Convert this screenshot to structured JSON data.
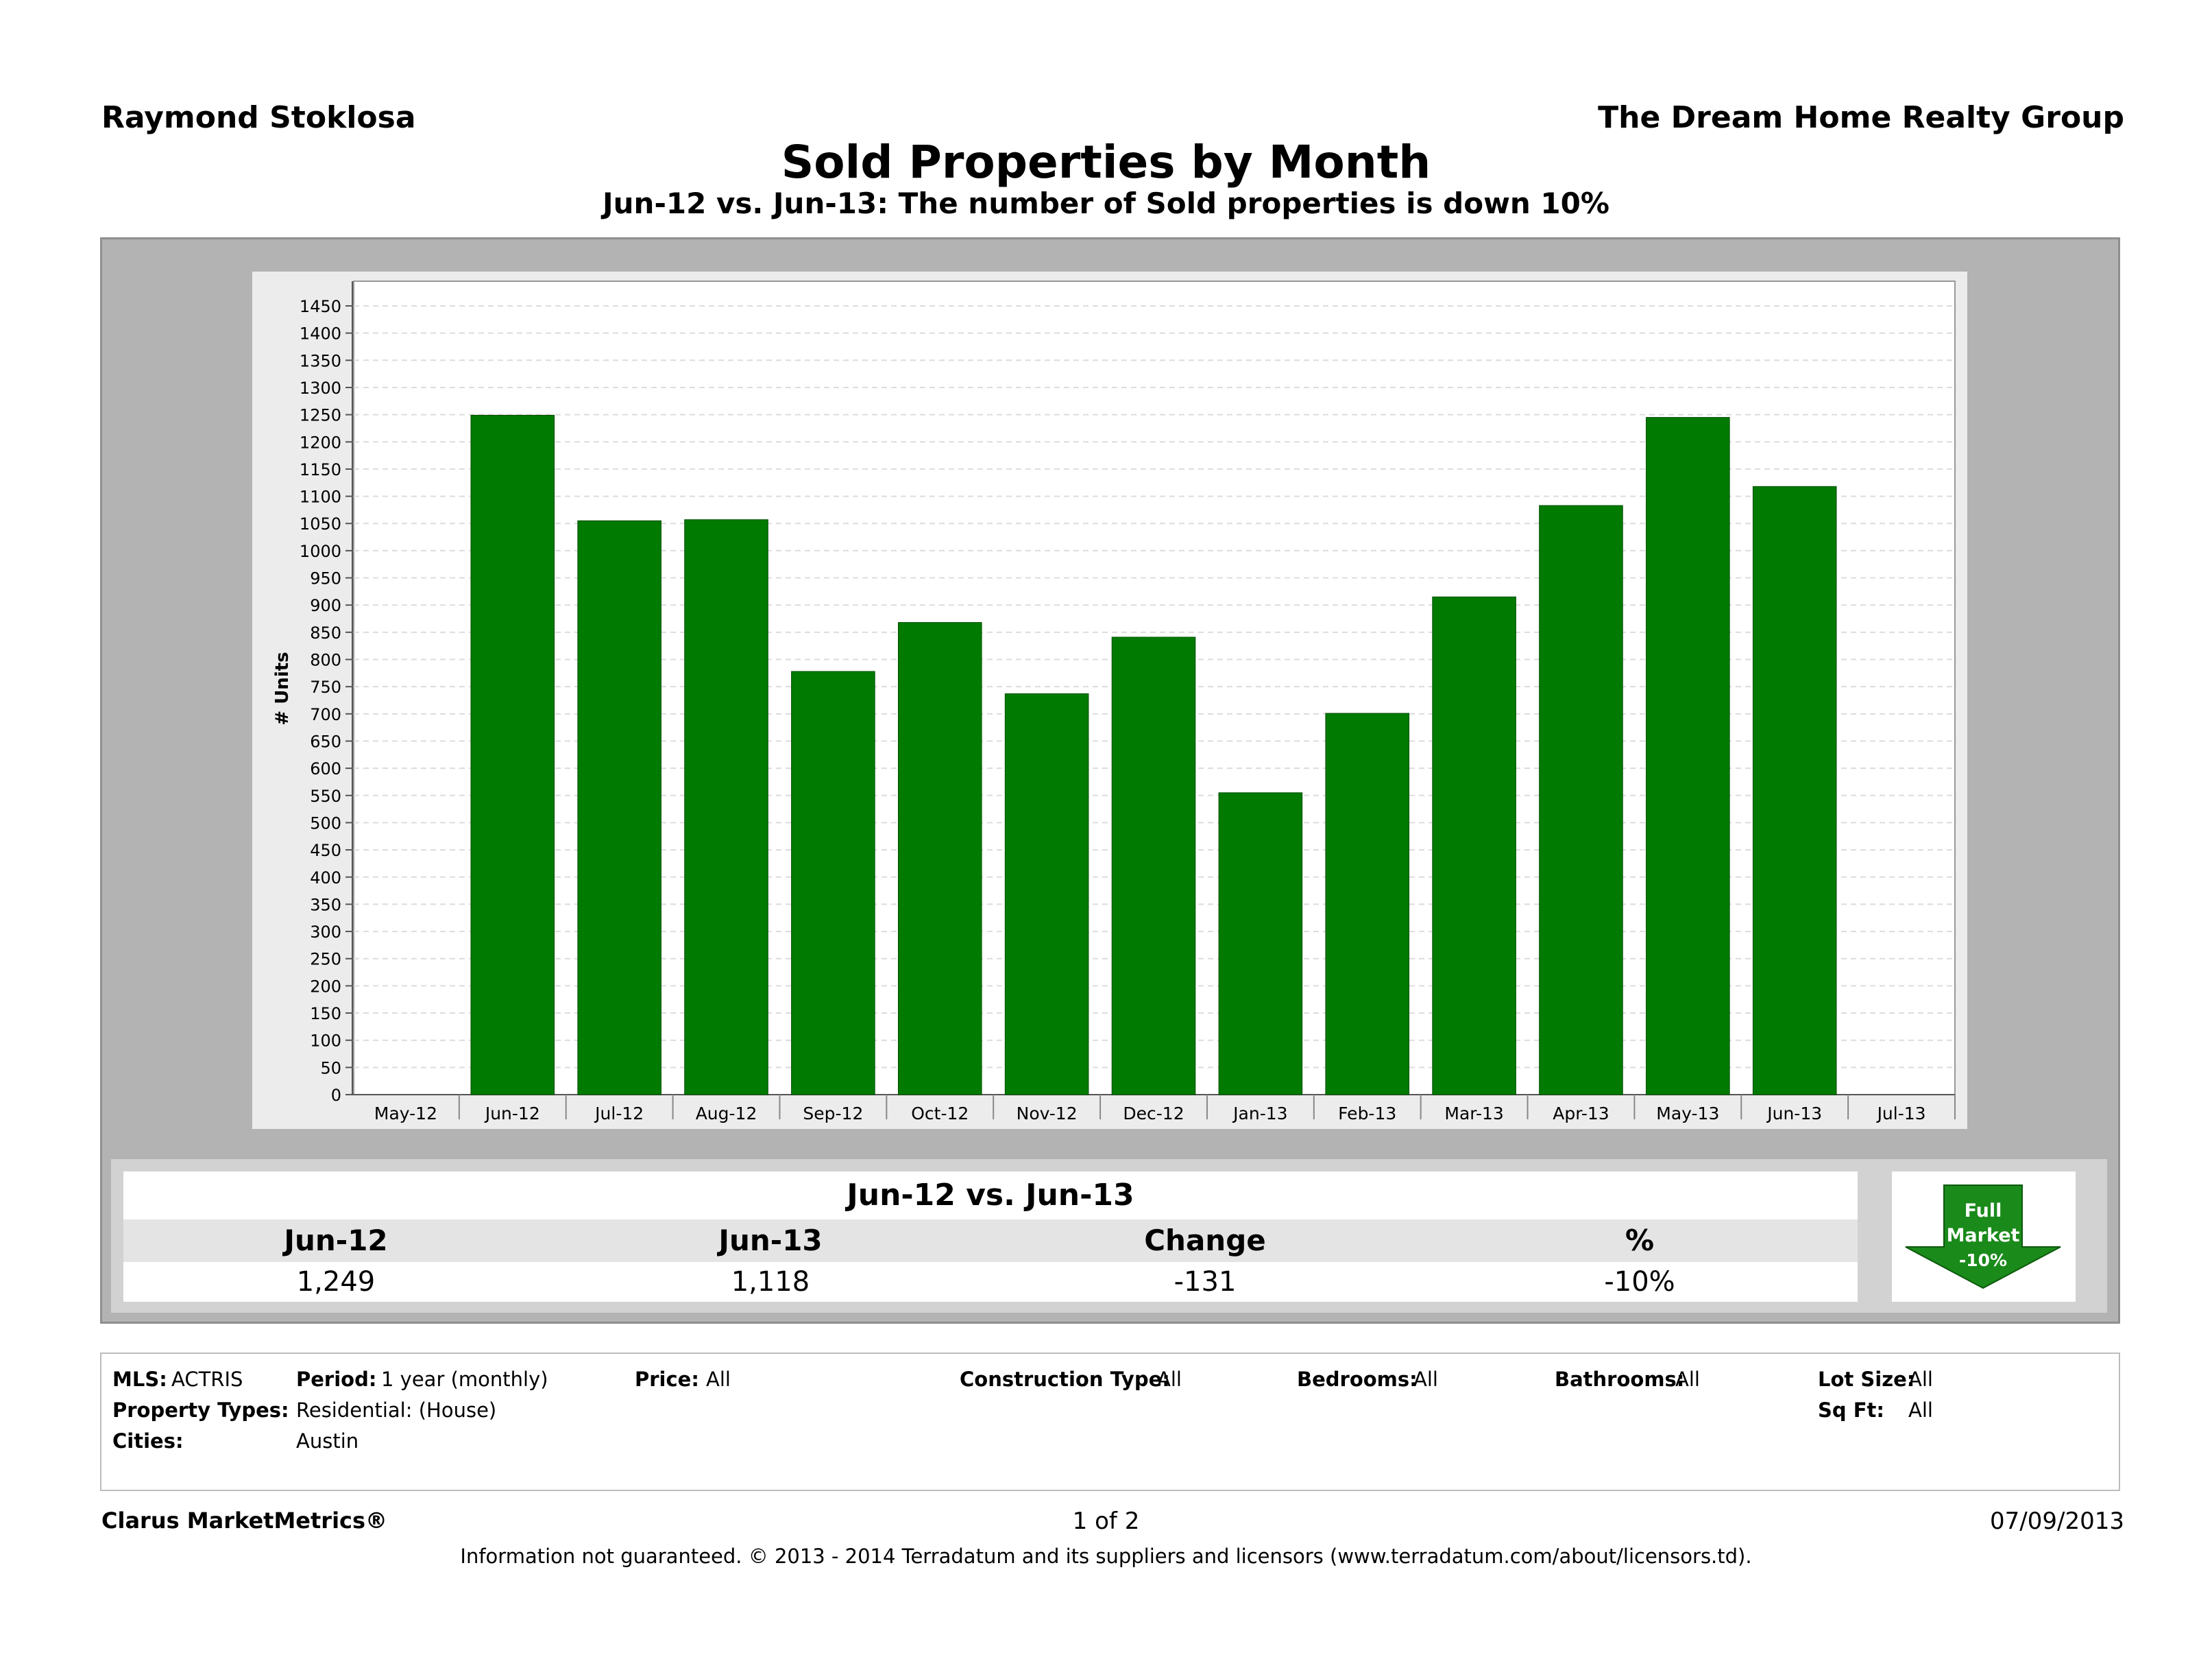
{
  "header": {
    "agent": "Raymond Stoklosa",
    "company": "The Dream Home Realty Group",
    "title": "Sold Properties by Month",
    "subtitle": "Jun-12 vs. Jun-13: The number of Sold properties is down 10%"
  },
  "chart_data": {
    "type": "bar",
    "ylabel": "# Units",
    "ylim": [
      0,
      1450
    ],
    "ytick_step": 50,
    "grid": true,
    "bar_color": "#007a00",
    "x_ticks": [
      "May-12",
      "Jun-12",
      "Jul-12",
      "Aug-12",
      "Sep-12",
      "Oct-12",
      "Nov-12",
      "Dec-12",
      "Jan-13",
      "Feb-13",
      "Mar-13",
      "Apr-13",
      "May-13",
      "Jun-13",
      "Jul-13"
    ],
    "categories": [
      "Jun-12",
      "Jul-12",
      "Aug-12",
      "Sep-12",
      "Oct-12",
      "Nov-12",
      "Dec-12",
      "Jan-13",
      "Feb-13",
      "Mar-13",
      "Apr-13",
      "May-13",
      "Jun-13"
    ],
    "values": [
      1249,
      1055,
      1057,
      778,
      868,
      737,
      841,
      555,
      701,
      915,
      1083,
      1245,
      1118
    ]
  },
  "summary": {
    "title": "Jun-12 vs. Jun-13",
    "headers": [
      "Jun-12",
      "Jun-13",
      "Change",
      "%"
    ],
    "values": [
      "1,249",
      "1,118",
      "-131",
      "-10%"
    ]
  },
  "badge": {
    "line1": "Full",
    "line2": "Market",
    "line3": "-10%",
    "color": "#1a8a1a"
  },
  "filters": {
    "mls_label": "MLS:",
    "mls": "ACTRIS",
    "period_label": "Period:",
    "period": "1 year (monthly)",
    "price_label": "Price:",
    "price": "All",
    "construction_label": "Construction Type:",
    "construction": "All",
    "bedrooms_label": "Bedrooms:",
    "bedrooms": "All",
    "bathrooms_label": "Bathrooms:",
    "bathrooms": "All",
    "lotsize_label": "Lot Size:",
    "lotsize": "All",
    "property_types_label": "Property Types:",
    "property_types": "Residential: (House)",
    "sqft_label": "Sq Ft:",
    "sqft": "All",
    "cities_label": "Cities:",
    "cities": "Austin"
  },
  "footer": {
    "brand": "Clarus MarketMetrics®",
    "page": "1 of 2",
    "date": "07/09/2013",
    "disclaimer": "Information not guaranteed.  © 2013 - 2014 Terradatum and its suppliers and licensors (www.terradatum.com/about/licensors.td)."
  }
}
